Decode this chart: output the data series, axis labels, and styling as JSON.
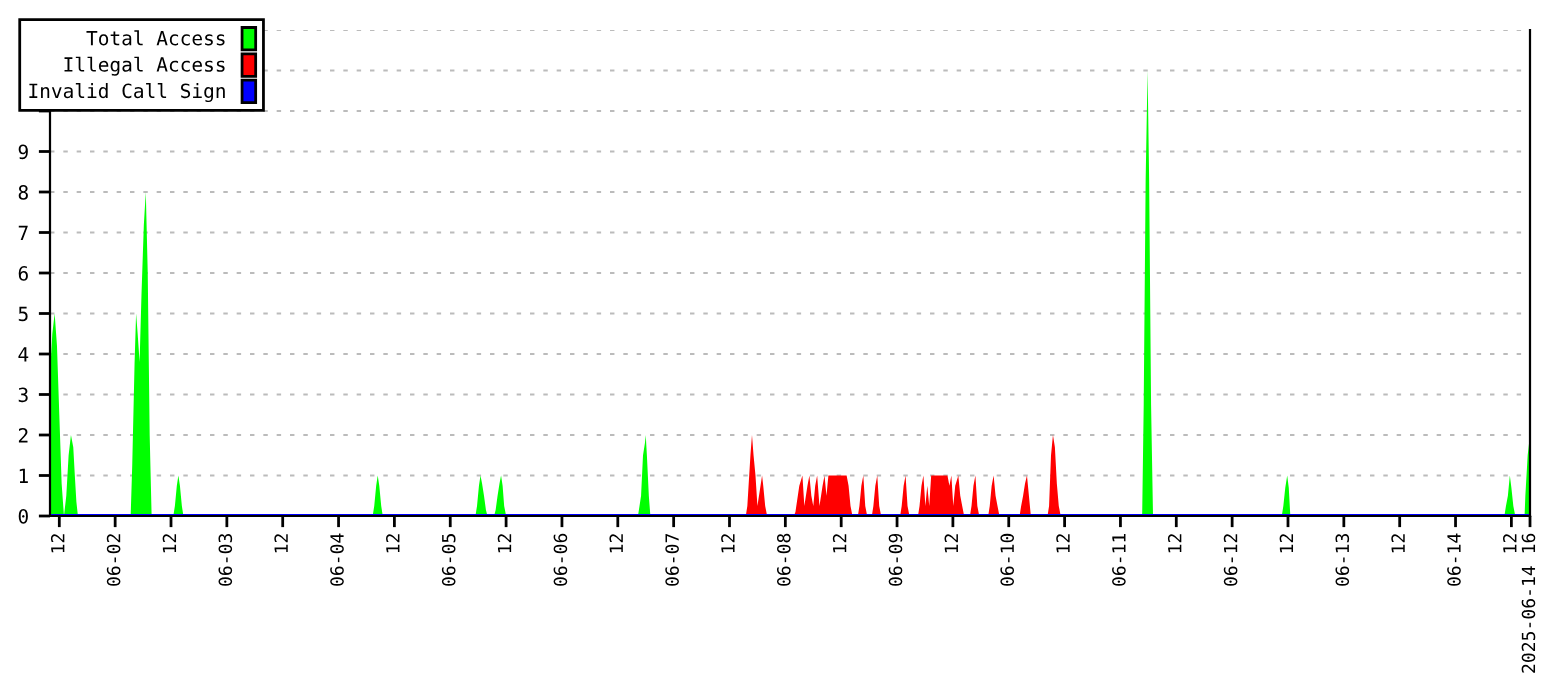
{
  "chart_data": {
    "type": "area",
    "xlim": [
      "2025-06-01T10:00",
      "2025-06-14T16:00"
    ],
    "ylim": [
      0,
      12
    ],
    "yticks": [
      0,
      1,
      2,
      3,
      4,
      5,
      6,
      7,
      8,
      9,
      {
        "value": 10,
        "label": null
      },
      {
        "value": 11,
        "label": null
      },
      {
        "value": 12,
        "label": null
      }
    ],
    "xticks": [
      {
        "value": "2025-06-01T12:00",
        "label": "12"
      },
      {
        "value": "2025-06-02T00:00",
        "label": "06-02"
      },
      {
        "value": "2025-06-02T12:00",
        "label": "12"
      },
      {
        "value": "2025-06-03T00:00",
        "label": "06-03"
      },
      {
        "value": "2025-06-03T12:00",
        "label": "12"
      },
      {
        "value": "2025-06-04T00:00",
        "label": "06-04"
      },
      {
        "value": "2025-06-04T12:00",
        "label": "12"
      },
      {
        "value": "2025-06-05T00:00",
        "label": "06-05"
      },
      {
        "value": "2025-06-05T12:00",
        "label": "12"
      },
      {
        "value": "2025-06-06T00:00",
        "label": "06-06"
      },
      {
        "value": "2025-06-06T12:00",
        "label": "12"
      },
      {
        "value": "2025-06-07T00:00",
        "label": "06-07"
      },
      {
        "value": "2025-06-07T12:00",
        "label": "12"
      },
      {
        "value": "2025-06-08T00:00",
        "label": "06-08"
      },
      {
        "value": "2025-06-08T12:00",
        "label": "12"
      },
      {
        "value": "2025-06-09T00:00",
        "label": "06-09"
      },
      {
        "value": "2025-06-09T12:00",
        "label": "12"
      },
      {
        "value": "2025-06-10T00:00",
        "label": "06-10"
      },
      {
        "value": "2025-06-10T12:00",
        "label": "12"
      },
      {
        "value": "2025-06-11T00:00",
        "label": "06-11"
      },
      {
        "value": "2025-06-11T12:00",
        "label": "12"
      },
      {
        "value": "2025-06-12T00:00",
        "label": "06-12"
      },
      {
        "value": "2025-06-12T12:00",
        "label": "12"
      },
      {
        "value": "2025-06-13T00:00",
        "label": "06-13"
      },
      {
        "value": "2025-06-13T12:00",
        "label": "12"
      },
      {
        "value": "2025-06-14T00:00",
        "label": "06-14"
      },
      {
        "value": "2025-06-14T12:00",
        "label": "12"
      },
      {
        "value": "2025-06-14T16:00",
        "label": "2025-06-14 16"
      }
    ],
    "grid": "y",
    "legend": "top left",
    "series": [
      {
        "name": "Total Access",
        "color": "#00ff00",
        "x": [
          "2025-06-01T10:00",
          "2025-06-01T10:30",
          "2025-06-01T11:00",
          "2025-06-01T11:30",
          "2025-06-01T12:00",
          "2025-06-01T12:30",
          "2025-06-01T13:00",
          "2025-06-01T13:30",
          "2025-06-01T14:00",
          "2025-06-01T14:30",
          "2025-06-01T15:00",
          "2025-06-01T15:20",
          "2025-06-01T15:40",
          "2025-06-01T16:00",
          "2025-06-02T03:20",
          "2025-06-02T03:40",
          "2025-06-02T04:10",
          "2025-06-02T04:30",
          "2025-06-02T04:50",
          "2025-06-02T05:15",
          "2025-06-02T05:40",
          "2025-06-02T06:10",
          "2025-06-02T06:35",
          "2025-06-02T07:00",
          "2025-06-02T07:25",
          "2025-06-02T07:50",
          "2025-06-02T12:30",
          "2025-06-02T12:50",
          "2025-06-02T13:15",
          "2025-06-02T13:35",
          "2025-06-02T13:55",
          "2025-06-02T14:20",
          "2025-06-02T14:40",
          "2025-06-04T07:20",
          "2025-06-04T07:40",
          "2025-06-04T08:05",
          "2025-06-04T08:25",
          "2025-06-04T08:45",
          "2025-06-04T09:10",
          "2025-06-04T09:30",
          "2025-06-05T05:25",
          "2025-06-05T05:45",
          "2025-06-05T06:10",
          "2025-06-05T06:30",
          "2025-06-05T06:50",
          "2025-06-05T07:15",
          "2025-06-05T07:40",
          "2025-06-05T08:00",
          "2025-06-05T09:25",
          "2025-06-05T09:45",
          "2025-06-05T10:10",
          "2025-06-05T10:35",
          "2025-06-05T10:55",
          "2025-06-05T11:15",
          "2025-06-05T11:35",
          "2025-06-05T12:00",
          "2025-06-06T16:20",
          "2025-06-06T16:40",
          "2025-06-06T17:00",
          "2025-06-06T17:25",
          "2025-06-06T17:50",
          "2025-06-06T18:00",
          "2025-06-06T18:15",
          "2025-06-06T18:40",
          "2025-06-06T19:00",
          "2025-06-11T04:40",
          "2025-06-11T05:00",
          "2025-06-11T05:25",
          "2025-06-11T05:50",
          "2025-06-11T06:10",
          "2025-06-11T06:35",
          "2025-06-11T07:00",
          "2025-06-12T10:40",
          "2025-06-12T11:00",
          "2025-06-12T11:25",
          "2025-06-12T11:50",
          "2025-06-12T12:10",
          "2025-06-12T12:30",
          "2025-06-14T10:30",
          "2025-06-14T10:50",
          "2025-06-14T11:15",
          "2025-06-14T11:40",
          "2025-06-14T12:00",
          "2025-06-14T12:25",
          "2025-06-14T12:50",
          "2025-06-14T14:50",
          "2025-06-14T15:00",
          "2025-06-14T15:30",
          "2025-06-14T16:00"
        ],
        "values": [
          3.5,
          4.5,
          5,
          4.2,
          2.5,
          0.8,
          0,
          0.5,
          1.5,
          2,
          1.7,
          1,
          0.35,
          0,
          0,
          1.25,
          3.75,
          5,
          4.5,
          3.8,
          5.5,
          7.2,
          8,
          6,
          2,
          0,
          0,
          0.25,
          0.75,
          1,
          0.75,
          0.25,
          0,
          0,
          0.25,
          0.75,
          1,
          0.75,
          0.25,
          0,
          0,
          0.25,
          0.75,
          1,
          0.8,
          0.5,
          0.15,
          0,
          0,
          0.15,
          0.5,
          0.8,
          1,
          0.75,
          0.25,
          0,
          0,
          0.25,
          0.5,
          1.5,
          1.8,
          2,
          1.5,
          0.5,
          0,
          0,
          2.75,
          8.3,
          11,
          8.3,
          2.75,
          0,
          0,
          0.25,
          0.7,
          1,
          0.7,
          0,
          0,
          0.25,
          0.5,
          1,
          0.7,
          0.25,
          0,
          0,
          0.5,
          1.5,
          2
        ]
      },
      {
        "name": "Illegal Access",
        "color": "#ff0000",
        "x": [
          "2025-06-07T15:30",
          "2025-06-07T15:50",
          "2025-06-07T16:30",
          "2025-06-07T16:50",
          "2025-06-07T17:10",
          "2025-06-07T17:35",
          "2025-06-07T18:00",
          "2025-06-07T18:40",
          "2025-06-07T19:00",
          "2025-06-07T19:15",
          "2025-06-07T19:40",
          "2025-06-07T20:05",
          "2025-06-08T01:50",
          "2025-06-08T02:10",
          "2025-06-08T03:00",
          "2025-06-08T03:40",
          "2025-06-08T04:05",
          "2025-06-08T04:45",
          "2025-06-08T05:10",
          "2025-06-08T05:35",
          "2025-06-08T06:00",
          "2025-06-08T06:25",
          "2025-06-08T06:50",
          "2025-06-08T07:20",
          "2025-06-08T08:00",
          "2025-06-08T08:25",
          "2025-06-08T08:50",
          "2025-06-08T09:15",
          "2025-06-08T09:50",
          "2025-06-08T13:10",
          "2025-06-08T13:35",
          "2025-06-08T14:00",
          "2025-06-08T14:25",
          "2025-06-08T15:35",
          "2025-06-08T15:55",
          "2025-06-08T16:20",
          "2025-06-08T16:45",
          "2025-06-08T17:10",
          "2025-06-08T17:35",
          "2025-06-08T18:35",
          "2025-06-08T18:55",
          "2025-06-08T19:20",
          "2025-06-08T19:45",
          "2025-06-08T20:10",
          "2025-06-08T20:35",
          "2025-06-09T00:40",
          "2025-06-09T01:00",
          "2025-06-09T01:25",
          "2025-06-09T01:50",
          "2025-06-09T02:15",
          "2025-06-09T02:40",
          "2025-06-09T04:30",
          "2025-06-09T04:50",
          "2025-06-09T05:15",
          "2025-06-09T05:40",
          "2025-06-09T06:05",
          "2025-06-09T06:30",
          "2025-06-09T06:55",
          "2025-06-09T07:20",
          "2025-06-09T07:55",
          "2025-06-09T10:50",
          "2025-06-09T11:15",
          "2025-06-09T11:40",
          "2025-06-09T12:05",
          "2025-06-09T12:30",
          "2025-06-09T13:10",
          "2025-06-09T13:35",
          "2025-06-09T14:00",
          "2025-06-09T14:25",
          "2025-06-09T15:40",
          "2025-06-09T16:00",
          "2025-06-09T16:25",
          "2025-06-09T16:50",
          "2025-06-09T17:15",
          "2025-06-09T17:40",
          "2025-06-09T19:35",
          "2025-06-09T19:55",
          "2025-06-09T20:20",
          "2025-06-09T20:45",
          "2025-06-09T21:10",
          "2025-06-09T21:35",
          "2025-06-09T22:00",
          "2025-06-10T02:20",
          "2025-06-10T02:40",
          "2025-06-10T03:05",
          "2025-06-10T03:30",
          "2025-06-10T03:55",
          "2025-06-10T04:20",
          "2025-06-10T04:45",
          "2025-06-10T08:20",
          "2025-06-10T08:40",
          "2025-06-10T09:05",
          "2025-06-10T09:30",
          "2025-06-10T09:55",
          "2025-06-10T10:20",
          "2025-06-10T10:45",
          "2025-06-10T11:10"
        ],
        "values": [
          0,
          0.25,
          1.5,
          2,
          1.5,
          1,
          0.25,
          0.75,
          1,
          0.75,
          0.25,
          0,
          0,
          0.1,
          0.75,
          1,
          0.25,
          0.75,
          1,
          0.5,
          0.25,
          0.75,
          1,
          0.25,
          0.75,
          1,
          0.5,
          1,
          1,
          1,
          0.75,
          0.25,
          0,
          0,
          0.25,
          0.75,
          1,
          0.25,
          0,
          0,
          0.25,
          0.75,
          1,
          0.25,
          0,
          0,
          0.25,
          0.75,
          1,
          0.25,
          0,
          0,
          0.25,
          0.75,
          1,
          0.25,
          0.75,
          0.25,
          1,
          1,
          1,
          0.75,
          1,
          0.25,
          0.75,
          1,
          0.5,
          0.25,
          0,
          0,
          0.25,
          0.75,
          1,
          0.25,
          0,
          0,
          0.25,
          0.75,
          1,
          0.5,
          0.25,
          0,
          0,
          0.25,
          0.5,
          0.8,
          1,
          0.5,
          0,
          0,
          0.25,
          1.5,
          2,
          1.7,
          0.8,
          0.25,
          0
        ]
      },
      {
        "name": "Invalid Call Sign",
        "color": "#0000ff",
        "type": "line",
        "x": [
          "2025-06-01T10:00",
          "2025-06-14T16:00"
        ],
        "values": [
          0,
          0
        ]
      }
    ]
  }
}
